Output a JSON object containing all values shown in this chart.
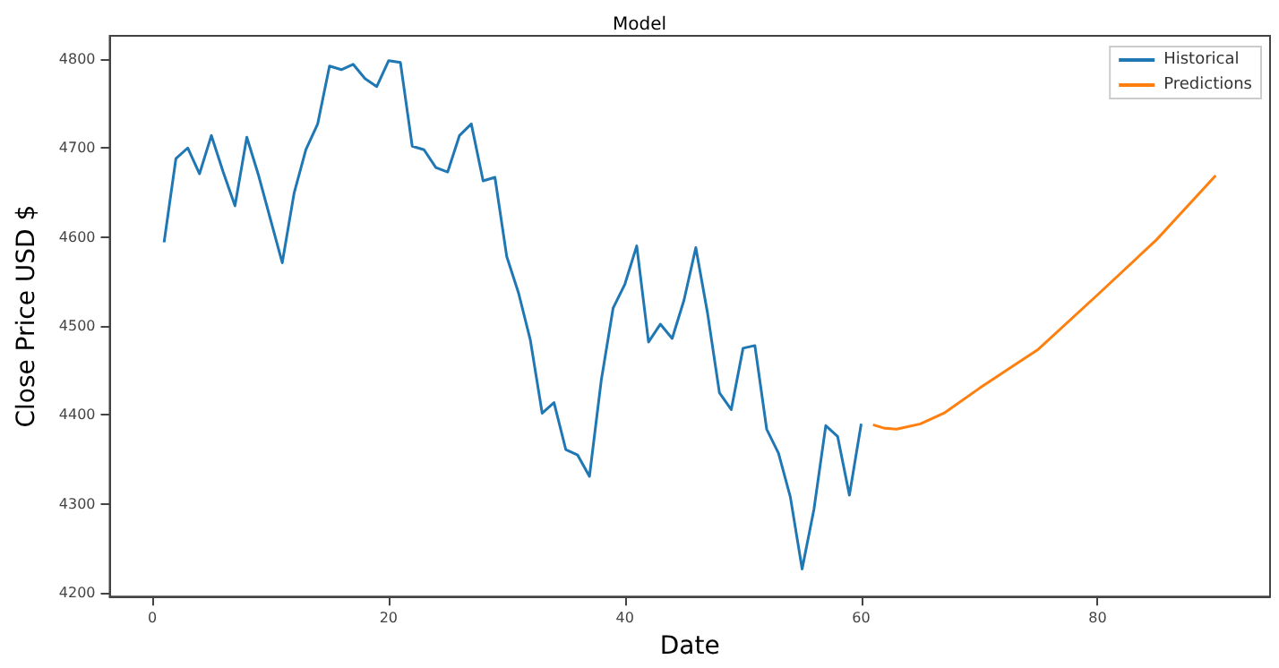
{
  "chart_data": {
    "type": "line",
    "title": "Model",
    "xlabel": "Date",
    "ylabel": "Close Price USD $",
    "xlim": [
      -3.6,
      94.6
    ],
    "xticks": [
      0,
      20,
      40,
      60,
      80
    ],
    "ylim": [
      4196,
      4826
    ],
    "yticks": [
      4200,
      4300,
      4400,
      4500,
      4600,
      4700,
      4800
    ],
    "legend": "top right",
    "marker": "none",
    "line_style": "solid",
    "series": [
      {
        "name": "Historical",
        "color": "#1f77b4",
        "x": [
          1,
          2,
          3,
          4,
          5,
          6,
          7,
          8,
          9,
          10,
          11,
          12,
          13,
          14,
          15,
          16,
          17,
          18,
          19,
          20,
          21,
          22,
          23,
          24,
          25,
          26,
          27,
          28,
          29,
          30,
          31,
          32,
          33,
          34,
          35,
          36,
          37,
          38,
          39,
          40,
          41,
          42,
          43,
          44,
          45,
          46,
          47,
          48,
          49,
          50,
          51,
          52,
          53,
          54,
          55,
          56,
          57,
          58,
          59,
          60
        ],
        "values": [
          4594,
          4688,
          4700,
          4671,
          4714,
          4673,
          4635,
          4712,
          4669,
          4620,
          4571,
          4649,
          4698,
          4727,
          4792,
          4788,
          4794,
          4778,
          4769,
          4798,
          4796,
          4702,
          4698,
          4678,
          4673,
          4714,
          4727,
          4663,
          4667,
          4578,
          4537,
          4484,
          4402,
          4414,
          4361,
          4355,
          4331,
          4439,
          4520,
          4547,
          4590,
          4482,
          4502,
          4486,
          4529,
          4588,
          4514,
          4425,
          4406,
          4475,
          4478,
          4384,
          4357,
          4308,
          4227,
          4294,
          4388,
          4376,
          4310,
          4390
        ]
      },
      {
        "name": "Predictions",
        "color": "#ff7f0e",
        "x": [
          61,
          62,
          63,
          65,
          67,
          70,
          75,
          80,
          85,
          90
        ],
        "values": [
          4389,
          4385,
          4384,
          4390,
          4402,
          4430,
          4474,
          4535,
          4597,
          4669
        ]
      }
    ]
  }
}
